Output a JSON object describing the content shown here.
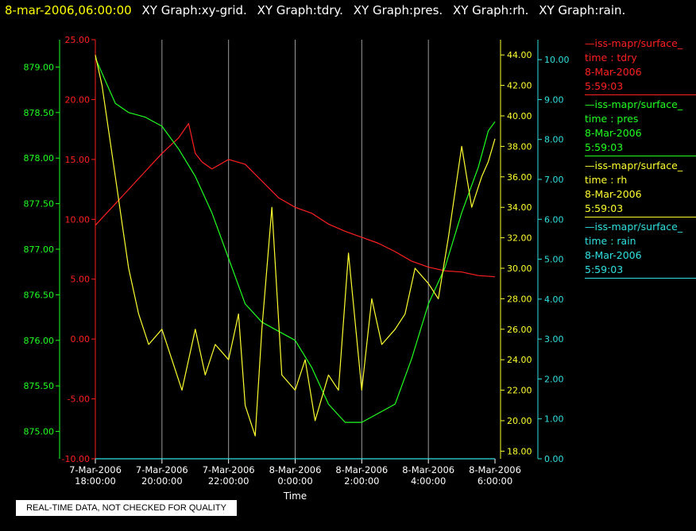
{
  "header": {
    "date": "8-mar-2006,06:00:00",
    "graphs": [
      "XY Graph:xy-grid.",
      "XY Graph:tdry.",
      "XY Graph:pres.",
      "XY Graph:rh.",
      "XY Graph:rain."
    ]
  },
  "legend": [
    {
      "source": "—iss-mapr/surface_",
      "variable": "time : tdry",
      "date": "8-Mar-2006",
      "time": "5:59:03",
      "color": "#ff2020"
    },
    {
      "source": "—iss-mapr/surface_",
      "variable": "time : pres",
      "date": "8-Mar-2006",
      "time": "5:59:03",
      "color": "#20ff20"
    },
    {
      "source": "—iss-mapr/surface_",
      "variable": "time : rh",
      "date": "8-Mar-2006",
      "time": "5:59:03",
      "color": "#ffff30"
    },
    {
      "source": "—iss-mapr/surface_",
      "variable": "time : rain",
      "date": "8-Mar-2006",
      "time": "5:59:03",
      "color": "#30e0e0"
    }
  ],
  "notice": "REAL-TIME DATA, NOT CHECKED FOR QUALITY",
  "chart_data": {
    "type": "line",
    "xlabel": "Time",
    "x_ticks": [
      {
        "date": "7-Mar-2006",
        "time": "18:00:00"
      },
      {
        "date": "7-Mar-2006",
        "time": "20:00:00"
      },
      {
        "date": "7-Mar-2006",
        "time": "22:00:00"
      },
      {
        "date": "8-Mar-2006",
        "time": "0:00:00"
      },
      {
        "date": "8-Mar-2006",
        "time": "2:00:00"
      },
      {
        "date": "8-Mar-2006",
        "time": "4:00:00"
      },
      {
        "date": "8-Mar-2006",
        "time": "6:00:00"
      }
    ],
    "x_range_hours": [
      0,
      12
    ],
    "grid": "vertical",
    "axes": {
      "tdry": {
        "color": "#ff2020",
        "side": "left",
        "range": [
          -10,
          25
        ],
        "ticks": [
          "-10.00",
          "-5.00",
          "0.00",
          "5.00",
          "10.00",
          "15.00",
          "20.00",
          "25.00"
        ]
      },
      "pres": {
        "color": "#20ff20",
        "side": "left",
        "range": [
          874.7,
          879.3
        ],
        "ticks": [
          "875.00",
          "875.50",
          "876.00",
          "876.50",
          "877.00",
          "877.50",
          "878.00",
          "878.50",
          "879.00"
        ]
      },
      "rh": {
        "color": "#ffff30",
        "side": "right",
        "range": [
          17.5,
          45
        ],
        "ticks": [
          "18.00",
          "20.00",
          "22.00",
          "24.00",
          "26.00",
          "28.00",
          "30.00",
          "32.00",
          "34.00",
          "36.00",
          "38.00",
          "40.00",
          "42.00",
          "44.00"
        ]
      },
      "rain": {
        "color": "#30e0e0",
        "side": "right",
        "range": [
          0,
          10.5
        ],
        "ticks": [
          "0.00",
          "1.00",
          "2.00",
          "3.00",
          "4.00",
          "5.00",
          "6.00",
          "7.00",
          "8.00",
          "9.00",
          "10.00"
        ]
      }
    },
    "series": [
      {
        "name": "tdry",
        "axis": "tdry",
        "x": [
          0,
          0.5,
          1,
          1.5,
          2,
          2.5,
          2.8,
          3,
          3.2,
          3.5,
          4,
          4.5,
          5,
          5.5,
          6,
          6.5,
          7,
          7.5,
          8,
          8.5,
          9,
          9.5,
          10,
          10.5,
          11,
          11.5,
          12
        ],
        "y": [
          9.5,
          11,
          12.5,
          14,
          15.5,
          16.8,
          18,
          15.5,
          14.8,
          14.2,
          15,
          14.6,
          13.2,
          11.8,
          11,
          10.5,
          9.6,
          9,
          8.5,
          8,
          7.3,
          6.5,
          6,
          5.7,
          5.6,
          5.3,
          5.2
        ]
      },
      {
        "name": "pres",
        "axis": "pres",
        "x": [
          0,
          0.3,
          0.6,
          1,
          1.5,
          2,
          2.5,
          3,
          3.5,
          4,
          4.5,
          5,
          5.5,
          6,
          6.5,
          7,
          7.5,
          8,
          8.5,
          9,
          9.5,
          10,
          10.5,
          11,
          11.5,
          11.8,
          12
        ],
        "y": [
          879.1,
          878.85,
          878.6,
          878.5,
          878.45,
          878.35,
          878.1,
          877.8,
          877.4,
          876.9,
          876.4,
          876.2,
          876.1,
          876.0,
          875.7,
          875.3,
          875.1,
          875.1,
          875.2,
          875.3,
          875.8,
          876.4,
          876.8,
          877.4,
          877.9,
          878.3,
          878.4
        ]
      },
      {
        "name": "rh",
        "axis": "rh",
        "x": [
          0,
          0.2,
          0.4,
          0.6,
          0.8,
          1,
          1.3,
          1.6,
          2,
          2.3,
          2.6,
          3,
          3.3,
          3.6,
          4,
          4.3,
          4.5,
          4.8,
          5,
          5.3,
          5.6,
          6,
          6.3,
          6.6,
          7,
          7.3,
          7.6,
          8,
          8.3,
          8.6,
          9,
          9.3,
          9.6,
          10,
          10.3,
          10.6,
          11,
          11.3,
          11.6,
          11.8,
          12
        ],
        "y": [
          44,
          42,
          39,
          36,
          33,
          30,
          27,
          25,
          26,
          24,
          22,
          26,
          23,
          25,
          24,
          27,
          21,
          19,
          26,
          34,
          23,
          22,
          24,
          20,
          23,
          22,
          31,
          22,
          28,
          25,
          26,
          27,
          30,
          29,
          28,
          32,
          38,
          34,
          36,
          37,
          38.5
        ]
      },
      {
        "name": "rain",
        "axis": "rain",
        "x": [
          0,
          12
        ],
        "y": [
          0,
          0
        ]
      }
    ]
  }
}
